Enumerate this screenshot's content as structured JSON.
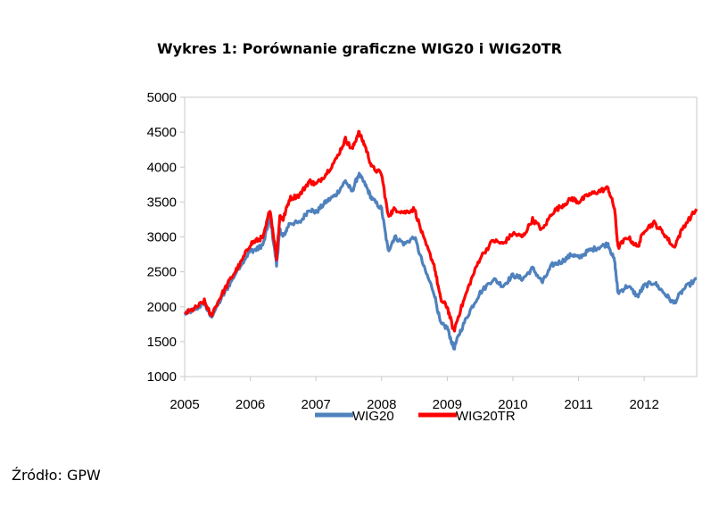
{
  "title": "Wykres 1: Porównanie graficzne WIG20 i WIG20TR",
  "source": "Źródło: GPW",
  "chart_data": {
    "type": "line",
    "title": "Wykres 1: Porównanie graficzne WIG20 i WIG20TR",
    "xlabel": "",
    "ylabel": "",
    "xlim": [
      2005.0,
      2012.8
    ],
    "ylim": [
      1000,
      5000
    ],
    "grid": false,
    "legend": "bottom",
    "x_ticks": [
      "2005",
      "2006",
      "2007",
      "2008",
      "2009",
      "2010",
      "2011",
      "2012"
    ],
    "y_ticks": [
      "1000",
      "1500",
      "2000",
      "2500",
      "3000",
      "3500",
      "4000",
      "4500",
      "5000"
    ],
    "x": [
      2005.0,
      2005.15,
      2005.3,
      2005.4,
      2005.55,
      2005.7,
      2005.85,
      2006.0,
      2006.1,
      2006.2,
      2006.3,
      2006.4,
      2006.45,
      2006.5,
      2006.6,
      2006.75,
      2006.9,
      2007.0,
      2007.15,
      2007.3,
      2007.45,
      2007.55,
      2007.65,
      2007.75,
      2007.85,
      2008.0,
      2008.1,
      2008.2,
      2008.35,
      2008.5,
      2008.65,
      2008.8,
      2008.9,
      2009.0,
      2009.1,
      2009.2,
      2009.35,
      2009.5,
      2009.7,
      2009.85,
      2010.0,
      2010.15,
      2010.3,
      2010.45,
      2010.6,
      2010.75,
      2010.9,
      2011.0,
      2011.15,
      2011.3,
      2011.45,
      2011.55,
      2011.6,
      2011.75,
      2011.9,
      2012.0,
      2012.15,
      2012.3,
      2012.45,
      2012.6,
      2012.8
    ],
    "series": [
      {
        "name": "WIG20",
        "color": "#4F81BD",
        "values": [
          1900,
          1960,
          2050,
          1850,
          2100,
          2350,
          2600,
          2800,
          2820,
          2900,
          3300,
          2600,
          3100,
          3000,
          3200,
          3200,
          3400,
          3350,
          3500,
          3600,
          3800,
          3650,
          3900,
          3750,
          3550,
          3400,
          2800,
          3000,
          2900,
          3000,
          2550,
          2200,
          1750,
          1700,
          1400,
          1650,
          1950,
          2200,
          2400,
          2300,
          2450,
          2400,
          2550,
          2350,
          2600,
          2650,
          2750,
          2700,
          2800,
          2850,
          2900,
          2650,
          2200,
          2300,
          2150,
          2300,
          2350,
          2200,
          2050,
          2250,
          2400
        ]
      },
      {
        "name": "WIG20TR",
        "color": "#FF0000",
        "values": [
          1900,
          1970,
          2080,
          1870,
          2150,
          2400,
          2620,
          2900,
          2950,
          3000,
          3400,
          2700,
          3300,
          3250,
          3550,
          3600,
          3800,
          3750,
          3900,
          4100,
          4400,
          4250,
          4500,
          4300,
          4000,
          3900,
          3300,
          3400,
          3350,
          3400,
          2950,
          2600,
          2100,
          2000,
          1650,
          1950,
          2350,
          2700,
          2950,
          2900,
          3050,
          3000,
          3250,
          3100,
          3350,
          3450,
          3550,
          3500,
          3600,
          3650,
          3700,
          3400,
          2850,
          3000,
          2850,
          3100,
          3200,
          3050,
          2850,
          3150,
          3400
        ]
      }
    ]
  }
}
